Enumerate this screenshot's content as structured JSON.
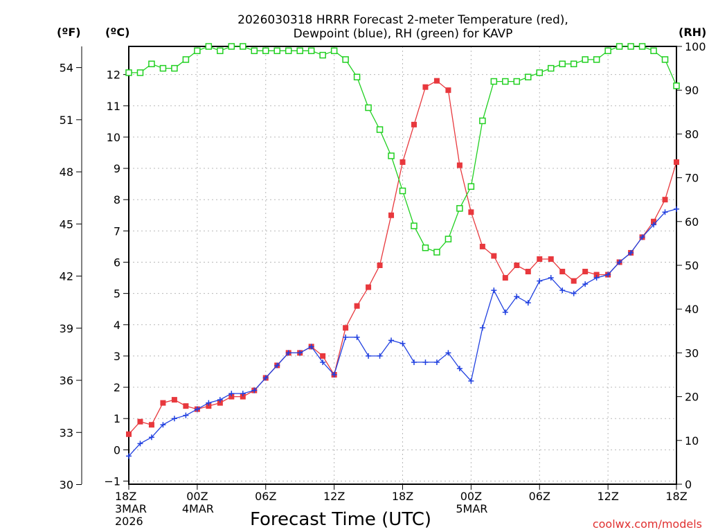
{
  "chart_data": {
    "type": "line",
    "title_line1": "2026030318 HRRR Forecast 2-meter Temperature (red),",
    "title_line2": "Dewpoint (blue), RH (green) for KAVP",
    "xlabel": "Forecast Time (UTC)",
    "credit": "coolwx.com/models",
    "unit_f": "(ºF)",
    "unit_c": "(ºC)",
    "unit_rh": "(RH)",
    "hours": [
      0,
      1,
      2,
      3,
      4,
      5,
      6,
      7,
      8,
      9,
      10,
      11,
      12,
      13,
      14,
      15,
      16,
      17,
      18,
      19,
      20,
      21,
      22,
      23,
      24,
      25,
      26,
      27,
      28,
      29,
      30,
      31,
      32,
      33,
      34,
      35,
      36,
      37,
      38,
      39,
      40,
      41,
      42,
      43,
      44,
      45,
      46,
      47,
      48
    ],
    "x_ticks": [
      {
        "hour": 0,
        "lines": [
          "18Z",
          "3MAR",
          "2026"
        ]
      },
      {
        "hour": 6,
        "lines": [
          "00Z",
          "4MAR"
        ]
      },
      {
        "hour": 12,
        "lines": [
          "06Z"
        ]
      },
      {
        "hour": 18,
        "lines": [
          "12Z"
        ]
      },
      {
        "hour": 24,
        "lines": [
          "18Z"
        ]
      },
      {
        "hour": 30,
        "lines": [
          "00Z",
          "5MAR"
        ]
      },
      {
        "hour": 36,
        "lines": [
          "06Z"
        ]
      },
      {
        "hour": 42,
        "lines": [
          "12Z"
        ]
      },
      {
        "hour": 48,
        "lines": [
          "18Z"
        ]
      }
    ],
    "y_left_c": {
      "range": [
        -1.1,
        12.9
      ],
      "ticks": [
        -1,
        0,
        1,
        2,
        3,
        4,
        5,
        6,
        7,
        8,
        9,
        10,
        11,
        12
      ]
    },
    "y_left_f": {
      "ticks": [
        30,
        33,
        36,
        39,
        42,
        45,
        48,
        51,
        54
      ]
    },
    "y_right_rh": {
      "range": [
        0,
        100
      ],
      "ticks": [
        0,
        10,
        20,
        30,
        40,
        50,
        60,
        70,
        80,
        90,
        100
      ]
    },
    "grid": true,
    "series": [
      {
        "name": "Temperature (°C)",
        "color": "#e8383d",
        "marker": "filled-square",
        "axis": "left",
        "values": [
          0.5,
          0.9,
          0.8,
          1.5,
          1.6,
          1.4,
          1.3,
          1.4,
          1.5,
          1.7,
          1.7,
          1.9,
          2.3,
          2.7,
          3.1,
          3.1,
          3.3,
          3.0,
          2.4,
          3.9,
          4.6,
          5.2,
          5.9,
          7.5,
          9.2,
          10.4,
          11.6,
          11.8,
          11.5,
          9.1,
          7.6,
          6.5,
          6.2,
          5.5,
          5.9,
          5.7,
          6.1,
          6.1,
          5.7,
          5.4,
          5.7,
          5.6,
          5.6,
          6.0,
          6.3,
          6.8,
          7.3,
          8.0,
          9.2
        ]
      },
      {
        "name": "Dewpoint (°C)",
        "color": "#2040e0",
        "marker": "plus",
        "axis": "left",
        "values": [
          -0.2,
          0.2,
          0.4,
          0.8,
          1.0,
          1.1,
          1.3,
          1.5,
          1.6,
          1.8,
          1.8,
          1.9,
          2.3,
          2.7,
          3.1,
          3.1,
          3.3,
          2.8,
          2.4,
          3.6,
          3.6,
          3.0,
          3.0,
          3.5,
          3.4,
          2.8,
          2.8,
          2.8,
          3.1,
          2.6,
          2.2,
          3.9,
          5.1,
          4.4,
          4.9,
          4.7,
          5.4,
          5.5,
          5.1,
          5.0,
          5.3,
          5.5,
          5.6,
          6.0,
          6.3,
          6.8,
          7.2,
          7.6,
          7.7
        ]
      },
      {
        "name": "RH (%)",
        "color": "#20d020",
        "marker": "open-square",
        "axis": "right",
        "values": [
          94,
          94,
          96,
          95,
          95,
          97,
          99,
          100,
          99,
          100,
          100,
          99,
          99,
          99,
          99,
          99,
          99,
          98,
          99,
          97,
          93,
          86,
          81,
          75,
          67,
          59,
          54,
          53,
          56,
          63,
          68,
          83,
          92,
          92,
          92,
          93,
          94,
          95,
          96,
          96,
          97,
          97,
          99,
          100,
          100,
          100,
          99,
          97,
          91
        ]
      }
    ]
  }
}
